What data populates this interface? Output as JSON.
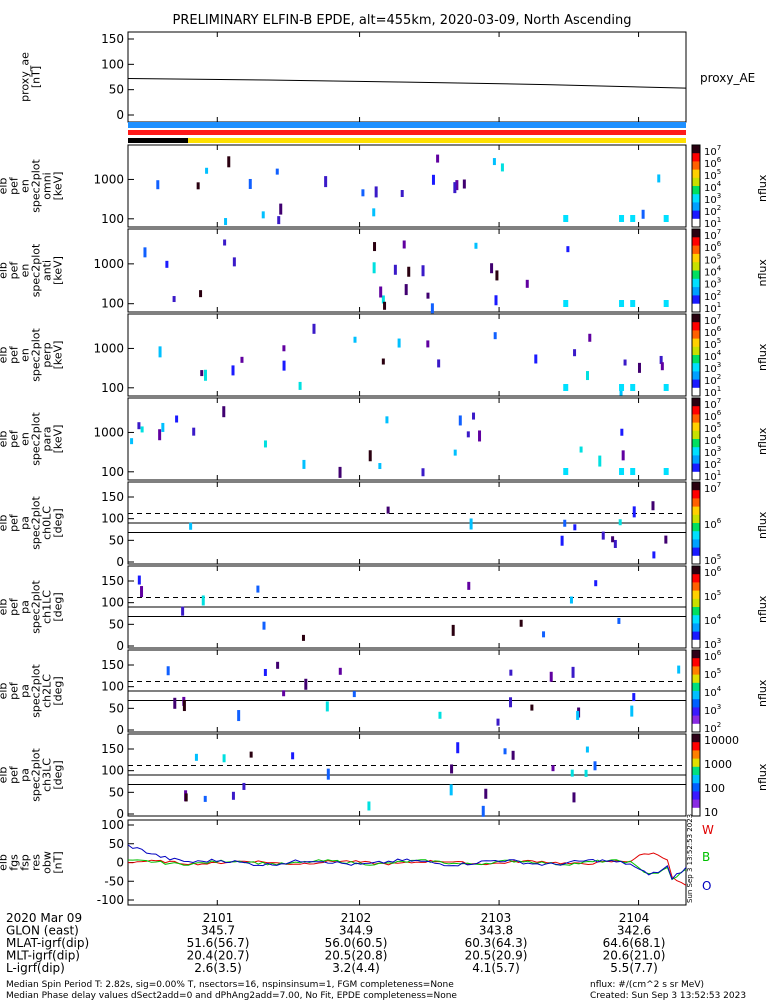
{
  "title": "PRELIMINARY ELFIN-B EPDE, alt=455km, 2020-03-09, North Ascending",
  "chart_data": {
    "type": "multi-panel spectrogram",
    "title": "PRELIMINARY ELFIN-B EPDE, alt=455km, 2020-03-09, North Ascending",
    "panels": [
      {
        "key": "proxy_ae",
        "ylabel": [
          "proxy_ae",
          "[nT]"
        ],
        "ylim": [
          -10,
          155
        ],
        "yticks": [
          "150",
          "100",
          "50",
          "0"
        ],
        "side_label": "proxy_AE",
        "line": [
          [
            0,
            72
          ],
          [
            0.25,
            69
          ],
          [
            0.5,
            65
          ],
          [
            0.75,
            60
          ],
          [
            1,
            53
          ]
        ]
      },
      {
        "key": "omni",
        "ylabel": [
          "elb",
          "pef",
          "en",
          "spec2plot",
          "omni",
          "[keV]"
        ],
        "ylim": [
          60,
          8000
        ],
        "yticks": [
          "1000",
          "100"
        ],
        "cbar_ticks": [
          "10^7",
          "10^6",
          "10^5",
          "10^4",
          "10^3",
          "10^2",
          "10^1"
        ],
        "cbar_label": "nflux"
      },
      {
        "key": "anti",
        "ylabel": [
          "elb",
          "pef",
          "en",
          "spec2plot",
          "anti",
          "[keV]"
        ],
        "ylim": [
          60,
          8000
        ],
        "yticks": [
          "1000",
          "100"
        ],
        "cbar_ticks": [
          "10^7",
          "10^6",
          "10^5",
          "10^4",
          "10^3",
          "10^2",
          "10^1"
        ],
        "cbar_label": "nflux"
      },
      {
        "key": "perp",
        "ylabel": [
          "elb",
          "pef",
          "en",
          "spec2plot",
          "perp",
          "[keV]"
        ],
        "ylim": [
          60,
          8000
        ],
        "yticks": [
          "1000",
          "100"
        ],
        "cbar_ticks": [
          "10^7",
          "10^6",
          "10^5",
          "10^4",
          "10^3",
          "10^2",
          "10^1"
        ],
        "cbar_label": "nflux"
      },
      {
        "key": "para",
        "ylabel": [
          "elb",
          "pef",
          "en",
          "spec2plot",
          "para",
          "[keV]"
        ],
        "ylim": [
          60,
          8000
        ],
        "yticks": [
          "1000",
          "100"
        ],
        "cbar_ticks": [
          "10^7",
          "10^6",
          "10^5",
          "10^4",
          "10^3",
          "10^2",
          "10^1"
        ],
        "cbar_label": "nflux"
      },
      {
        "key": "ch0LC",
        "ylabel": [
          "elb",
          "pef",
          "pa",
          "spec2plot",
          "ch0LC",
          "[deg]"
        ],
        "ylim": [
          0,
          180
        ],
        "yticks": [
          "150",
          "100",
          "50",
          "0"
        ],
        "cbar_ticks": [
          "10^7",
          "10^6",
          "10^5"
        ],
        "cbar_label": "nflux"
      },
      {
        "key": "ch1LC",
        "ylabel": [
          "elb",
          "pef",
          "pa",
          "spec2plot",
          "ch1LC",
          "[deg]"
        ],
        "ylim": [
          0,
          180
        ],
        "yticks": [
          "150",
          "100",
          "50",
          "0"
        ],
        "cbar_ticks": [
          "10^6",
          "10^5",
          "10^4",
          "10^3"
        ],
        "cbar_label": "nflux"
      },
      {
        "key": "ch2LC",
        "ylabel": [
          "elb",
          "pef",
          "pa",
          "spec2plot",
          "ch2LC",
          "[deg]"
        ],
        "ylim": [
          0,
          180
        ],
        "yticks": [
          "150",
          "100",
          "50",
          "0"
        ],
        "cbar_ticks": [
          "10^6",
          "10^5",
          "10^4",
          "10^3",
          "10^2"
        ],
        "cbar_label": "nflux"
      },
      {
        "key": "ch3LC",
        "ylabel": [
          "elb",
          "pef",
          "pa",
          "spec2plot",
          "ch3LC",
          "[deg]"
        ],
        "ylim": [
          0,
          180
        ],
        "yticks": [
          "150",
          "100",
          "50",
          "0"
        ],
        "cbar_ticks": [
          "10000",
          "1000",
          "100",
          "10"
        ],
        "cbar_label": "nflux"
      },
      {
        "key": "fgs",
        "ylabel": [
          "elb",
          "fgs",
          "fsp",
          "res",
          "obw",
          "[nT]"
        ],
        "ylim": [
          -110,
          110
        ],
        "yticks": [
          "100",
          "50",
          "0",
          "-50",
          "-100"
        ],
        "legend": [
          "W",
          "B",
          "O"
        ],
        "vertical_stamp": "Sun Sep 3 13:52:53 2023"
      }
    ],
    "x_tick_labels": [
      "2101",
      "2102",
      "2103",
      "2104"
    ],
    "x_table": {
      "rows": [
        {
          "label": "2020 Mar 09",
          "values": [
            "2101",
            "2102",
            "2103",
            "2104"
          ]
        },
        {
          "label": "GLON (east)",
          "values": [
            "345.7",
            "344.9",
            "343.8",
            "342.6"
          ]
        },
        {
          "label": "MLAT-igrf(dip)",
          "values": [
            "51.6(56.7)",
            "56.0(60.5)",
            "60.3(64.3)",
            "64.6(68.1)"
          ]
        },
        {
          "label": "MLT-igrf(dip)",
          "values": [
            "20.4(20.7)",
            "20.5(20.8)",
            "20.5(20.9)",
            "20.6(21.0)"
          ]
        },
        {
          "label": "L-igrf(dip)",
          "values": [
            "2.6(3.5)",
            "3.2(4.4)",
            "4.1(5.7)",
            "5.5(7.7)"
          ]
        }
      ]
    },
    "footer": {
      "left1": "Median Spin Period T: 2.82s, sig=0.00% T, nsectors=16, nspinsinsum=1, FGM completeness=None",
      "left2": "Median Phase delay values dSect2add=0 and dPhAng2add=7.00, No Fit, EPDE completeness=None",
      "right1": "nflux: #/(cm^2 s sr MeV)",
      "right2": "Created: Sun Sep  3 13:52:53 2023"
    }
  }
}
